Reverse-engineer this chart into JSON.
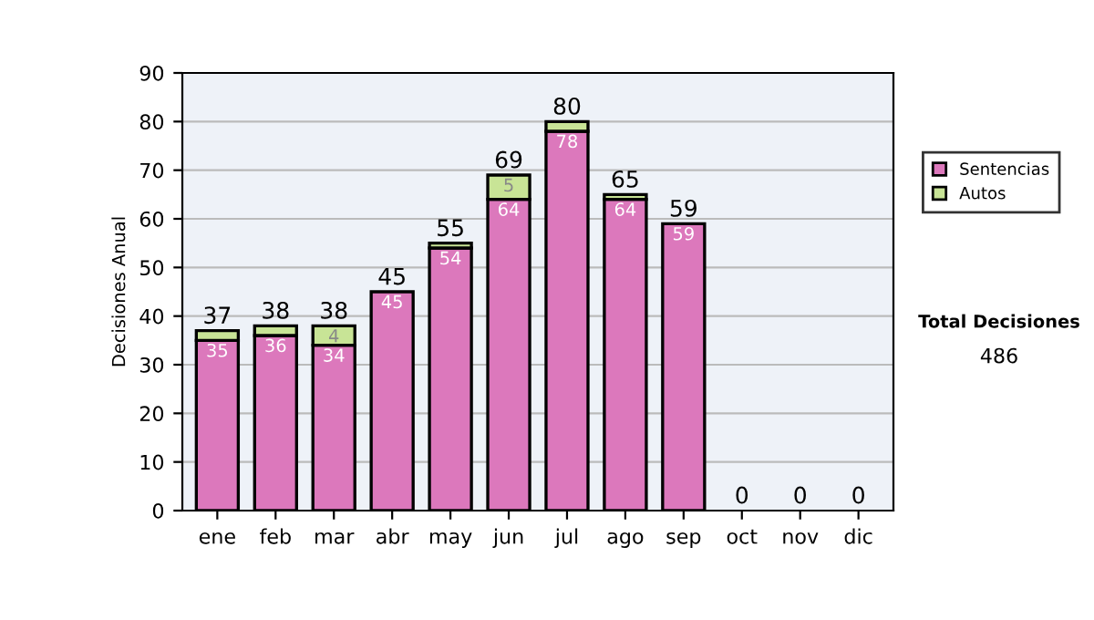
{
  "chart_data": {
    "type": "bar",
    "stacked": true,
    "ylabel": "Decisiones Anual",
    "categories": [
      "ene",
      "feb",
      "mar",
      "abr",
      "may",
      "jun",
      "jul",
      "ago",
      "sep",
      "oct",
      "nov",
      "dic"
    ],
    "series": [
      {
        "name": "Sentencias",
        "color": "#dc78bc",
        "values": [
          35,
          36,
          34,
          45,
          54,
          64,
          78,
          64,
          59,
          0,
          0,
          0
        ],
        "value_labels": [
          "35",
          "36",
          "34",
          "45",
          "54",
          "64",
          "78",
          "64",
          "59",
          null,
          null,
          null
        ]
      },
      {
        "name": "Autos",
        "color": "#c8e496",
        "values": [
          2,
          2,
          4,
          0,
          1,
          5,
          2,
          1,
          0,
          0,
          0,
          0
        ],
        "value_labels": [
          null,
          null,
          "4",
          null,
          null,
          "5",
          null,
          null,
          null,
          null,
          null,
          null
        ]
      }
    ],
    "totals": [
      "37",
      "38",
      "38",
      "45",
      "55",
      "69",
      "80",
      "65",
      "59",
      "0",
      "0",
      "0"
    ],
    "ylim": [
      0,
      90
    ],
    "yticks": [
      0,
      10,
      20,
      30,
      40,
      50,
      60,
      70,
      80,
      90
    ],
    "grid": "y",
    "legend": "right",
    "annotations": [
      "Total Decisiones",
      "486"
    ]
  }
}
